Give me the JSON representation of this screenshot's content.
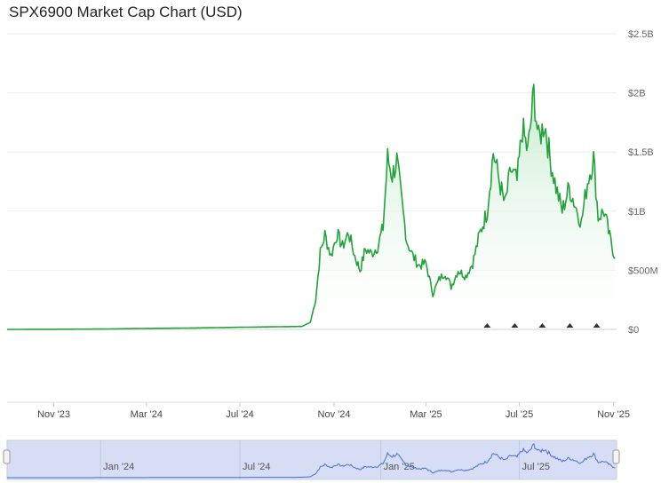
{
  "title": "SPX6900 Market Cap Chart (USD)",
  "colors": {
    "line": "#22a33a",
    "area_top": "#bfe8c8",
    "navigator_line": "#4a6fd0",
    "navigator_fill": "#d6ddf4",
    "grid": "#eeeeee"
  },
  "chart_data": {
    "type": "area",
    "title": "SPX6900 Market Cap Chart (USD)",
    "xlabel": "",
    "ylabel": "",
    "ylim": [
      0,
      2500000000
    ],
    "x_ticks": [
      "Nov '23",
      "Mar '24",
      "Jul '24",
      "Nov '24",
      "Mar '25",
      "Jul '25",
      "Nov '25"
    ],
    "y_ticks": [
      "$0",
      "$500M",
      "$1B",
      "$1.5B",
      "$2B",
      "$2.5B"
    ],
    "y_tick_values": [
      0,
      500000000,
      1000000000,
      1500000000,
      2000000000,
      2500000000
    ],
    "x_range": [
      "2023-09-01",
      "2025-11-05"
    ],
    "series": [
      {
        "values_unit": "USD",
        "points": [
          [
            "2023-09-01",
            0
          ],
          [
            "2023-11-01",
            1000000
          ],
          [
            "2024-01-01",
            3000000
          ],
          [
            "2024-03-01",
            8000000
          ],
          [
            "2024-05-01",
            12000000
          ],
          [
            "2024-07-01",
            18000000
          ],
          [
            "2024-08-15",
            22000000
          ],
          [
            "2024-09-20",
            25000000
          ],
          [
            "2024-10-01",
            60000000
          ],
          [
            "2024-10-08",
            250000000
          ],
          [
            "2024-10-14",
            650000000
          ],
          [
            "2024-10-20",
            800000000
          ],
          [
            "2024-10-28",
            620000000
          ],
          [
            "2024-11-05",
            810000000
          ],
          [
            "2024-11-12",
            700000000
          ],
          [
            "2024-11-20",
            820000000
          ],
          [
            "2024-11-28",
            620000000
          ],
          [
            "2024-12-05",
            500000000
          ],
          [
            "2024-12-12",
            680000000
          ],
          [
            "2024-12-20",
            640000000
          ],
          [
            "2024-12-28",
            700000000
          ],
          [
            "2025-01-04",
            860000000
          ],
          [
            "2025-01-10",
            1450000000
          ],
          [
            "2025-01-16",
            1300000000
          ],
          [
            "2025-01-22",
            1430000000
          ],
          [
            "2025-01-28",
            1100000000
          ],
          [
            "2025-02-04",
            750000000
          ],
          [
            "2025-02-12",
            620000000
          ],
          [
            "2025-02-20",
            540000000
          ],
          [
            "2025-03-01",
            560000000
          ],
          [
            "2025-03-10",
            300000000
          ],
          [
            "2025-03-18",
            420000000
          ],
          [
            "2025-03-26",
            480000000
          ],
          [
            "2025-04-03",
            360000000
          ],
          [
            "2025-04-12",
            500000000
          ],
          [
            "2025-04-22",
            450000000
          ],
          [
            "2025-05-01",
            560000000
          ],
          [
            "2025-05-10",
            800000000
          ],
          [
            "2025-05-20",
            1000000000
          ],
          [
            "2025-05-28",
            1500000000
          ],
          [
            "2025-06-05",
            1250000000
          ],
          [
            "2025-06-12",
            1050000000
          ],
          [
            "2025-06-20",
            1350000000
          ],
          [
            "2025-06-28",
            1250000000
          ],
          [
            "2025-07-05",
            1700000000
          ],
          [
            "2025-07-12",
            1500000000
          ],
          [
            "2025-07-20",
            2000000000
          ],
          [
            "2025-07-26",
            1600000000
          ],
          [
            "2025-08-03",
            1750000000
          ],
          [
            "2025-08-10",
            1450000000
          ],
          [
            "2025-08-18",
            1200000000
          ],
          [
            "2025-08-26",
            1000000000
          ],
          [
            "2025-09-04",
            1200000000
          ],
          [
            "2025-09-12",
            1050000000
          ],
          [
            "2025-09-20",
            900000000
          ],
          [
            "2025-09-28",
            1250000000
          ],
          [
            "2025-10-06",
            1450000000
          ],
          [
            "2025-10-12",
            950000000
          ],
          [
            "2025-10-20",
            1000000000
          ],
          [
            "2025-10-27",
            780000000
          ],
          [
            "2025-11-03",
            600000000
          ]
        ]
      }
    ],
    "annotations_markers": 5,
    "navigator": {
      "x_ticks": [
        "Jan '24",
        "Jul '24",
        "Jan '25",
        "Jul '25"
      ]
    },
    "grid": true,
    "legend": "none"
  }
}
